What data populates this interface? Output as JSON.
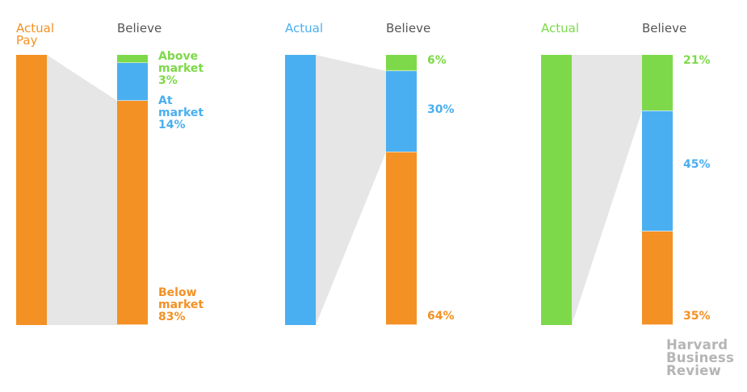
{
  "colors": {
    "below": "#f39125",
    "at": "#4aaff0",
    "above": "#7ed94a",
    "connector": "#e6e6e6",
    "header_gray": "#555555",
    "logo": "#b5b5b5"
  },
  "logo_lines": [
    "Harvard",
    "Business",
    "Review"
  ],
  "chart_data": [
    {
      "type": "bar",
      "actual_header": [
        "Actual",
        "Pay"
      ],
      "believe_header": "Believe",
      "actual": "below",
      "segments": [
        {
          "key": "above",
          "value": 3,
          "label_lines": [
            "Above",
            "market",
            "3%"
          ]
        },
        {
          "key": "at",
          "value": 14,
          "label_lines": [
            "At",
            "market",
            "14%"
          ]
        },
        {
          "key": "below",
          "value": 83,
          "label_lines": [
            "Below",
            "market",
            "83%"
          ]
        }
      ]
    },
    {
      "type": "bar",
      "actual_header": [
        "Actual"
      ],
      "believe_header": "Believe",
      "actual": "at",
      "segments": [
        {
          "key": "above",
          "value": 6,
          "label_lines": [
            "6%"
          ]
        },
        {
          "key": "at",
          "value": 30,
          "label_lines": [
            "30%"
          ]
        },
        {
          "key": "below",
          "value": 64,
          "label_lines": [
            "64%"
          ]
        }
      ]
    },
    {
      "type": "bar",
      "actual_header": [
        "Actual"
      ],
      "believe_header": "Believe",
      "actual": "above",
      "segments": [
        {
          "key": "above",
          "value": 21,
          "label_lines": [
            "21%"
          ]
        },
        {
          "key": "at",
          "value": 45,
          "label_lines": [
            "45%"
          ]
        },
        {
          "key": "below",
          "value": 35,
          "label_lines": [
            "35%"
          ]
        }
      ]
    }
  ]
}
